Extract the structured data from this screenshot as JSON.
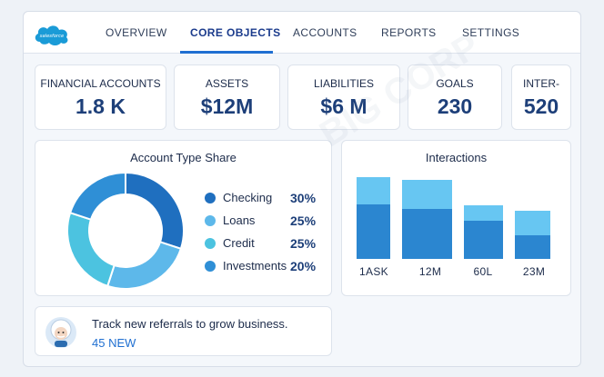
{
  "app": {
    "brand": "salesforce",
    "watermark": "BIG CORP",
    "colors": {
      "accent": "#1f6fd1",
      "brand_blue": "#1a9bd7",
      "value_text": "#1d3f79"
    }
  },
  "nav": {
    "tabs": [
      {
        "label": "OVERVIEW",
        "active": false
      },
      {
        "label": "CORE OBJECTS",
        "active": true
      },
      {
        "label": "ACCOUNTS",
        "active": false
      },
      {
        "label": "REPORTS",
        "active": false
      },
      {
        "label": "SETTINGS",
        "active": false
      }
    ]
  },
  "kpis": [
    {
      "label": "FINANCIAL ACCOUNTS",
      "value": "1.8 K"
    },
    {
      "label": "ASSETS",
      "value": "$12M"
    },
    {
      "label": "LIABILITIES",
      "value": "$6 M"
    },
    {
      "label": "GOALS",
      "value": "230"
    },
    {
      "label": "INTER-",
      "value": "520"
    }
  ],
  "donut_card": {
    "title": "Account Type Share"
  },
  "bar_card": {
    "title": "Interactions"
  },
  "chart_data": [
    {
      "type": "pie",
      "title": "Account Type Share",
      "categories": [
        "Checking",
        "Loans",
        "Credit",
        "Investments"
      ],
      "values": [
        30,
        25,
        25,
        20
      ],
      "labels": [
        "30%",
        "25%",
        "25%",
        "20%"
      ],
      "colors": [
        "#1f6fbf",
        "#5db8ea",
        "#4cc3e0",
        "#2f8fd6"
      ],
      "donut": true
    },
    {
      "type": "bar",
      "title": "Interactions",
      "categories": [
        "1ASK",
        "12M",
        "60L",
        "23M"
      ],
      "stacked": true,
      "series": [
        {
          "values": [
            60,
            55,
            42,
            26
          ],
          "color": "#2b86d0"
        },
        {
          "values": [
            30,
            32,
            17,
            27
          ],
          "color": "#67c6f2"
        }
      ],
      "ylim": [
        0,
        90
      ],
      "grid": false
    }
  ],
  "referral": {
    "text": "Track new referrals to grow business.",
    "count": "45 NEW"
  }
}
